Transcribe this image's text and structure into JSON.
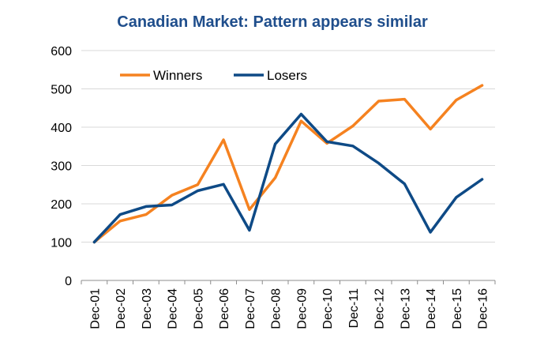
{
  "chart_data": {
    "type": "line",
    "title": "Canadian Market: Pattern appears similar",
    "categories": [
      "Dec-01",
      "Dec-02",
      "Dec-03",
      "Dec-04",
      "Dec-05",
      "Dec-06",
      "Dec-07",
      "Dec-08",
      "Dec-09",
      "Dec-10",
      "Dec-11",
      "Dec-12",
      "Dec-13",
      "Dec-14",
      "Dec-15",
      "Dec-16"
    ],
    "series": [
      {
        "name": "Winners",
        "color": "#f58220",
        "values": [
          100,
          155,
          172,
          222,
          250,
          367,
          185,
          268,
          416,
          358,
          403,
          468,
          473,
          395,
          471,
          509
        ]
      },
      {
        "name": "Losers",
        "color": "#0e4a86",
        "values": [
          100,
          172,
          193,
          197,
          234,
          251,
          131,
          356,
          434,
          362,
          351,
          306,
          252,
          126,
          217,
          264
        ]
      }
    ],
    "ylim": [
      0,
      600
    ],
    "yticks": [
      0,
      100,
      200,
      300,
      400,
      500,
      600
    ],
    "grid": "horizontal",
    "legend_position": "top-left",
    "xlabel": "",
    "ylabel": ""
  }
}
